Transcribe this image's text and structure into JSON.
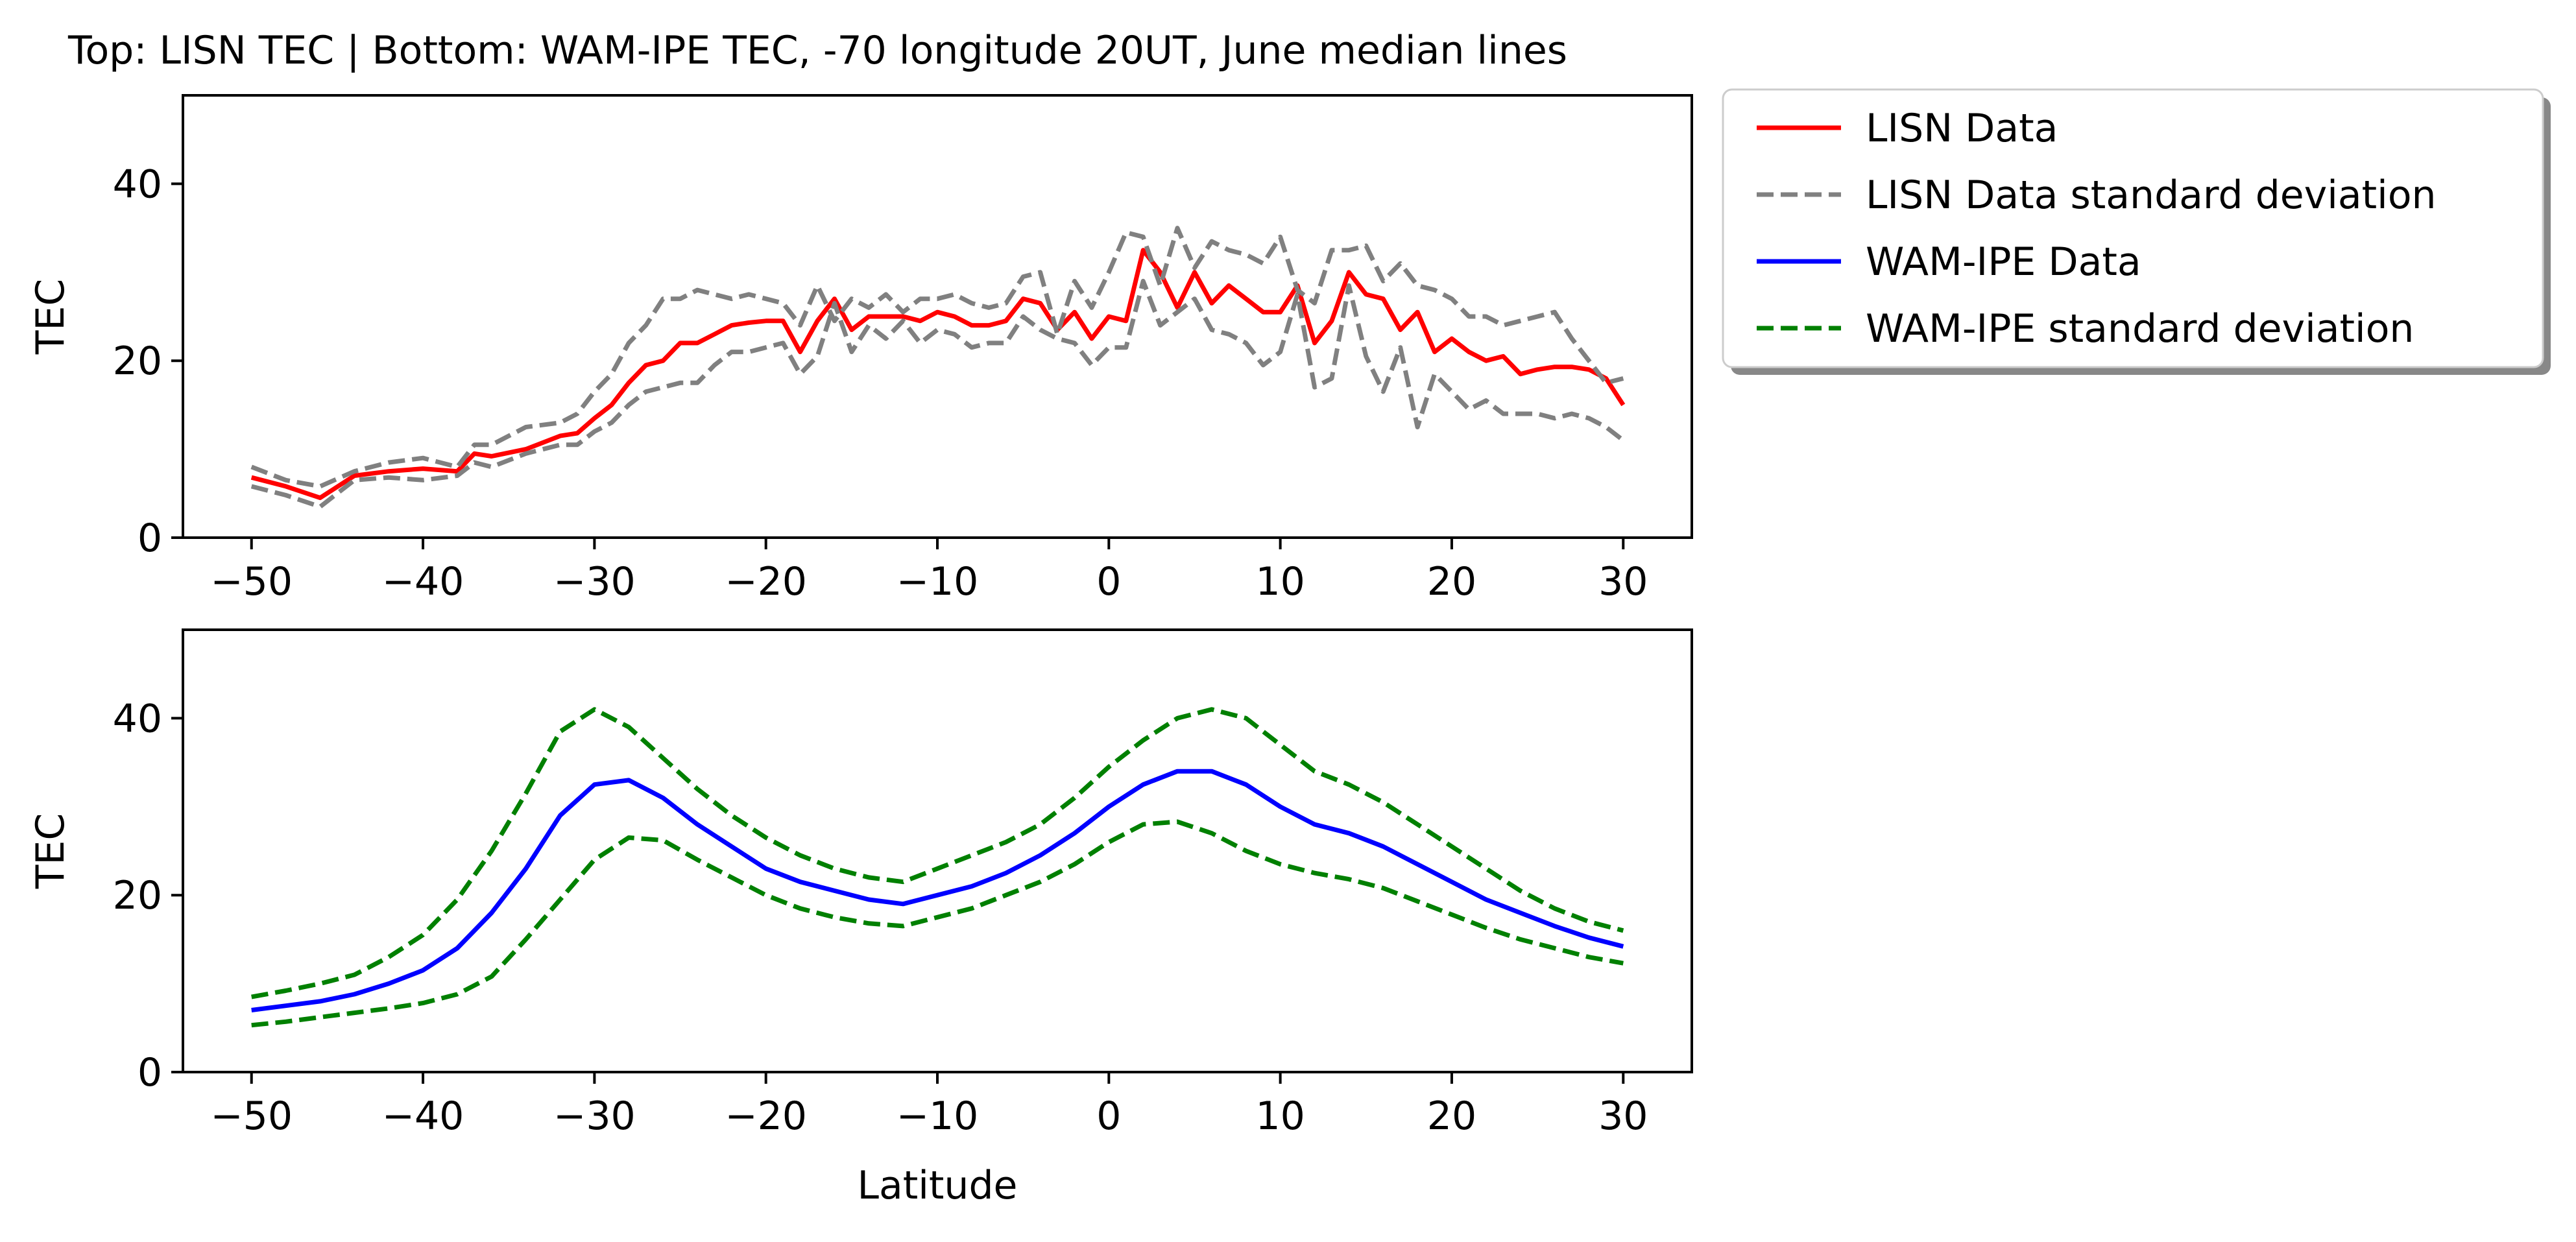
{
  "figure": {
    "title": "Top: LISN TEC | Bottom: WAM-IPE TEC, -70 longitude 20UT, June median lines"
  },
  "legend": {
    "placement": "outside right of top panel",
    "entries": [
      {
        "label": "LISN Data",
        "color": "#ff0000",
        "dash": "solid"
      },
      {
        "label": "LISN Data standard deviation",
        "color": "#808080",
        "dash": "dashed"
      },
      {
        "label": "WAM-IPE Data",
        "color": "#0000ff",
        "dash": "solid"
      },
      {
        "label": "WAM-IPE standard deviation",
        "color": "#008000",
        "dash": "dashed"
      }
    ]
  },
  "chart_data": [
    {
      "type": "line",
      "panel": "top",
      "xlabel": "",
      "ylabel": "TEC",
      "xlim": [
        -54,
        34
      ],
      "ylim": [
        0,
        50
      ],
      "xticks": [
        -50,
        -40,
        -30,
        -20,
        -10,
        0,
        10,
        20,
        30
      ],
      "xtick_labels": [
        "−50",
        "−40",
        "−30",
        "−20",
        "−10",
        "0",
        "10",
        "20",
        "30"
      ],
      "yticks": [
        0,
        20,
        40
      ],
      "ytick_labels": [
        "0",
        "20",
        "40"
      ],
      "grid": false,
      "series": [
        {
          "name": "LISN Data",
          "color": "#ff0000",
          "dash": "solid",
          "x": [
            -50,
            -48,
            -46,
            -44,
            -42,
            -40,
            -38,
            -37,
            -36,
            -34,
            -32,
            -31,
            -30,
            -29,
            -28,
            -27,
            -26,
            -25,
            -24,
            -23,
            -22,
            -21,
            -20,
            -19,
            -18,
            -17,
            -16,
            -15,
            -14,
            -13,
            -12,
            -11,
            -10,
            -9,
            -8,
            -7,
            -6,
            -5,
            -4,
            -3,
            -2,
            -1,
            0,
            1,
            2,
            3,
            4,
            5,
            6,
            7,
            8,
            9,
            10,
            11,
            12,
            13,
            14,
            15,
            16,
            17,
            18,
            19,
            20,
            21,
            22,
            23,
            24,
            25,
            26,
            27,
            28,
            29,
            30
          ],
          "values": [
            6.8,
            5.8,
            4.5,
            7.0,
            7.5,
            7.8,
            7.5,
            9.5,
            9.2,
            10.0,
            11.5,
            11.8,
            13.5,
            15.0,
            17.5,
            19.5,
            20.0,
            22.0,
            22.0,
            23.0,
            24.0,
            24.3,
            24.5,
            24.5,
            21.0,
            24.5,
            27.0,
            23.5,
            25.0,
            25.0,
            25.0,
            24.5,
            25.5,
            25.0,
            24.0,
            24.0,
            24.5,
            27.0,
            26.5,
            23.5,
            25.5,
            22.5,
            25.0,
            24.5,
            32.5,
            30.0,
            26.0,
            30.0,
            26.5,
            28.5,
            27.0,
            25.5,
            25.5,
            28.5,
            22.0,
            24.5,
            30.0,
            27.5,
            27.0,
            23.5,
            25.5,
            21.0,
            22.5,
            21.0,
            20.0,
            20.5,
            18.5,
            19.0,
            19.3,
            19.3,
            19.0,
            18.0,
            15.0
          ]
        },
        {
          "name": "LISN Data standard deviation",
          "color": "#808080",
          "dash": "dashed",
          "x": [
            -50,
            -48,
            -46,
            -44,
            -42,
            -40,
            -38,
            -37,
            -36,
            -34,
            -32,
            -31,
            -30,
            -29,
            -28,
            -27,
            -26,
            -25,
            -24,
            -23,
            -22,
            -21,
            -20,
            -19,
            -18,
            -17,
            -16,
            -15,
            -14,
            -13,
            -12,
            -11,
            -10,
            -9,
            -8,
            -7,
            -6,
            -5,
            -4,
            -3,
            -2,
            -1,
            0,
            1,
            2,
            3,
            4,
            5,
            6,
            7,
            8,
            9,
            10,
            11,
            12,
            13,
            14,
            15,
            16,
            17,
            18,
            19,
            20,
            21,
            22,
            23,
            24,
            25,
            26,
            27,
            28,
            29,
            30
          ],
          "values": [
            8.0,
            6.5,
            5.8,
            7.5,
            8.5,
            9.0,
            8.0,
            10.5,
            10.5,
            12.5,
            13.0,
            14.0,
            16.5,
            18.5,
            22.0,
            24.0,
            27.0,
            27.0,
            28.0,
            27.5,
            27.0,
            27.5,
            27.0,
            26.5,
            24.0,
            28.5,
            24.5,
            27.0,
            26.0,
            27.5,
            25.5,
            27.0,
            27.0,
            27.5,
            26.5,
            26.0,
            26.5,
            29.5,
            30.0,
            23.0,
            29.0,
            26.0,
            30.0,
            34.5,
            34.0,
            28.5,
            35.0,
            30.5,
            33.5,
            32.5,
            32.0,
            31.0,
            34.0,
            28.0,
            26.5,
            32.5,
            32.5,
            33.0,
            29.0,
            31.0,
            28.5,
            28.0,
            27.0,
            25.0,
            25.0,
            24.0,
            24.5,
            25.0,
            25.5,
            22.5,
            20.0,
            17.5,
            18.0
          ]
        },
        {
          "name": "LISN Data standard deviation lower",
          "color": "#808080",
          "dash": "dashed",
          "x": [
            -50,
            -48,
            -46,
            -44,
            -42,
            -40,
            -38,
            -37,
            -36,
            -34,
            -32,
            -31,
            -30,
            -29,
            -28,
            -27,
            -26,
            -25,
            -24,
            -23,
            -22,
            -21,
            -20,
            -19,
            -18,
            -17,
            -16,
            -15,
            -14,
            -13,
            -12,
            -11,
            -10,
            -9,
            -8,
            -7,
            -6,
            -5,
            -4,
            -3,
            -2,
            -1,
            0,
            1,
            2,
            3,
            4,
            5,
            6,
            7,
            8,
            9,
            10,
            11,
            12,
            13,
            14,
            15,
            16,
            17,
            18,
            19,
            20,
            21,
            22,
            23,
            24,
            25,
            26,
            27,
            28,
            29,
            30
          ],
          "values": [
            5.8,
            4.8,
            3.5,
            6.5,
            6.8,
            6.5,
            7.0,
            8.5,
            8.0,
            9.5,
            10.5,
            10.5,
            12.0,
            13.0,
            15.0,
            16.5,
            17.0,
            17.5,
            17.5,
            19.5,
            21.0,
            21.0,
            21.5,
            22.0,
            18.5,
            20.5,
            26.5,
            21.0,
            24.0,
            22.5,
            24.5,
            22.0,
            23.5,
            23.0,
            21.5,
            22.0,
            22.0,
            25.0,
            23.5,
            22.5,
            22.0,
            19.5,
            21.5,
            21.5,
            29.0,
            24.0,
            25.5,
            27.0,
            23.5,
            23.0,
            22.0,
            19.5,
            21.0,
            27.5,
            17.0,
            18.0,
            28.5,
            20.5,
            16.5,
            21.5,
            12.5,
            18.5,
            16.5,
            14.5,
            15.5,
            14.0,
            14.0,
            14.0,
            13.5,
            14.0,
            13.5,
            12.5,
            11.0
          ]
        }
      ]
    },
    {
      "type": "line",
      "panel": "bottom",
      "xlabel": "Latitude",
      "ylabel": "TEC",
      "xlim": [
        -54,
        34
      ],
      "ylim": [
        0,
        50
      ],
      "xticks": [
        -50,
        -40,
        -30,
        -20,
        -10,
        0,
        10,
        20,
        30
      ],
      "xtick_labels": [
        "−50",
        "−40",
        "−30",
        "−20",
        "−10",
        "0",
        "10",
        "20",
        "30"
      ],
      "yticks": [
        0,
        20,
        40
      ],
      "ytick_labels": [
        "0",
        "20",
        "40"
      ],
      "grid": false,
      "series": [
        {
          "name": "WAM-IPE Data",
          "color": "#0000ff",
          "dash": "solid",
          "x": [
            -50,
            -48,
            -46,
            -44,
            -42,
            -40,
            -38,
            -36,
            -34,
            -32,
            -30,
            -28,
            -26,
            -24,
            -22,
            -20,
            -18,
            -16,
            -14,
            -12,
            -10,
            -8,
            -6,
            -4,
            -2,
            0,
            2,
            4,
            6,
            8,
            10,
            12,
            14,
            16,
            18,
            20,
            22,
            24,
            26,
            28,
            30
          ],
          "values": [
            7.0,
            7.5,
            8.0,
            8.8,
            10.0,
            11.5,
            14.0,
            18.0,
            23.0,
            29.0,
            32.5,
            33.0,
            31.0,
            28.0,
            25.5,
            23.0,
            21.5,
            20.5,
            19.5,
            19.0,
            20.0,
            21.0,
            22.5,
            24.5,
            27.0,
            30.0,
            32.5,
            34.0,
            34.0,
            32.5,
            30.0,
            28.0,
            27.0,
            25.5,
            23.5,
            21.5,
            19.5,
            18.0,
            16.5,
            15.2,
            14.2
          ]
        },
        {
          "name": "WAM-IPE standard deviation",
          "color": "#008000",
          "dash": "dashed",
          "x": [
            -50,
            -48,
            -46,
            -44,
            -42,
            -40,
            -38,
            -36,
            -34,
            -32,
            -30,
            -28,
            -26,
            -24,
            -22,
            -20,
            -18,
            -16,
            -14,
            -12,
            -10,
            -8,
            -6,
            -4,
            -2,
            0,
            2,
            4,
            6,
            8,
            10,
            12,
            14,
            16,
            18,
            20,
            22,
            24,
            26,
            28,
            30
          ],
          "values": [
            8.5,
            9.2,
            10.0,
            11.0,
            13.0,
            15.5,
            19.5,
            25.0,
            31.5,
            38.5,
            41.0,
            39.0,
            35.5,
            32.0,
            29.0,
            26.5,
            24.5,
            23.0,
            22.0,
            21.5,
            23.0,
            24.5,
            26.0,
            28.0,
            31.0,
            34.5,
            37.5,
            40.0,
            41.0,
            40.0,
            37.0,
            34.0,
            32.5,
            30.5,
            28.0,
            25.5,
            23.0,
            20.5,
            18.5,
            17.0,
            16.0
          ]
        },
        {
          "name": "WAM-IPE standard deviation lower",
          "color": "#008000",
          "dash": "dashed",
          "x": [
            -50,
            -48,
            -46,
            -44,
            -42,
            -40,
            -38,
            -36,
            -34,
            -32,
            -30,
            -28,
            -26,
            -24,
            -22,
            -20,
            -18,
            -16,
            -14,
            -12,
            -10,
            -8,
            -6,
            -4,
            -2,
            0,
            2,
            4,
            6,
            8,
            10,
            12,
            14,
            16,
            18,
            20,
            22,
            24,
            26,
            28,
            30
          ],
          "values": [
            5.3,
            5.7,
            6.2,
            6.7,
            7.2,
            7.8,
            8.8,
            10.8,
            15.0,
            19.5,
            24.0,
            26.5,
            26.2,
            24.0,
            22.0,
            20.0,
            18.5,
            17.5,
            16.8,
            16.5,
            17.5,
            18.5,
            20.0,
            21.5,
            23.5,
            26.0,
            28.0,
            28.3,
            27.0,
            25.0,
            23.5,
            22.5,
            21.8,
            20.8,
            19.3,
            17.8,
            16.3,
            15.0,
            14.0,
            13.0,
            12.3
          ]
        }
      ]
    }
  ]
}
